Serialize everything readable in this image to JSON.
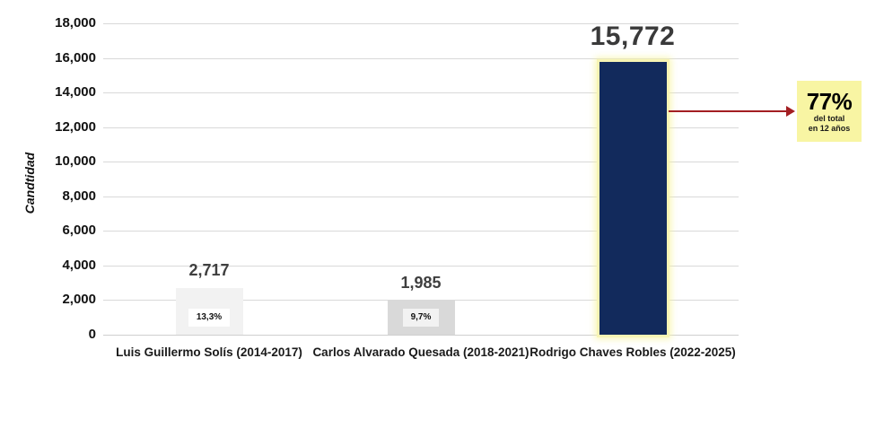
{
  "chart_data": {
    "type": "bar",
    "title": "",
    "xlabel": "",
    "ylabel": "Candtidad",
    "ylim": [
      0,
      18000
    ],
    "grid": true,
    "legend": "none",
    "yticks": [
      {
        "value": 0,
        "label": "0"
      },
      {
        "value": 2000,
        "label": "2,000"
      },
      {
        "value": 4000,
        "label": "4,000"
      },
      {
        "value": 6000,
        "label": "6,000"
      },
      {
        "value": 8000,
        "label": "8,000"
      },
      {
        "value": 10000,
        "label": "10,000"
      },
      {
        "value": 12000,
        "label": "12,000"
      },
      {
        "value": 14000,
        "label": "14,000"
      },
      {
        "value": 16000,
        "label": "16,000"
      },
      {
        "value": 18000,
        "label": "18,000"
      }
    ],
    "categories": [
      "Luis Guillermo Solís (2014-2017)",
      "Carlos Alvarado Quesada (2018-2021)",
      "Rodrigo Chaves Robles (2022-2025)"
    ],
    "bars": [
      {
        "category": "Luis Guillermo Solís (2014-2017)",
        "value": 2717,
        "value_label": "2,717",
        "percent_label": "13,3%",
        "color": "#F2F2F2",
        "percent_box_color": "#FFFFFF",
        "percent_box_width": 46,
        "highlight": false
      },
      {
        "category": "Carlos Alvarado Quesada (2018-2021)",
        "value": 1985,
        "value_label": "1,985",
        "percent_label": "9,7%",
        "color": "#D9D9D9",
        "percent_box_color": "#F2F2F2",
        "percent_box_width": 40,
        "highlight": false
      },
      {
        "category": "Rodrigo Chaves Robles (2022-2025)",
        "value": 15772,
        "value_label": "15,772",
        "percent_label": "",
        "color": "#122A5C",
        "percent_box_color": "",
        "percent_box_width": 0,
        "highlight": true
      }
    ],
    "annotation": {
      "headline": "77%",
      "line1": "del total",
      "line2": "en 12 años",
      "box_color": "#F8F5A3",
      "arrow_color": "#A31E22"
    }
  },
  "colors": {
    "background": "#FFFFFF",
    "gridline": "#D9D9D9",
    "bar_muted_1": "#F2F2F2",
    "bar_muted_2": "#D9D9D9",
    "bar_highlight": "#122A5C",
    "highlight_glow": "#F7F4B4",
    "value_label": "#3F3F3F",
    "annotation_box": "#F8F5A3",
    "arrow": "#A31E22"
  }
}
